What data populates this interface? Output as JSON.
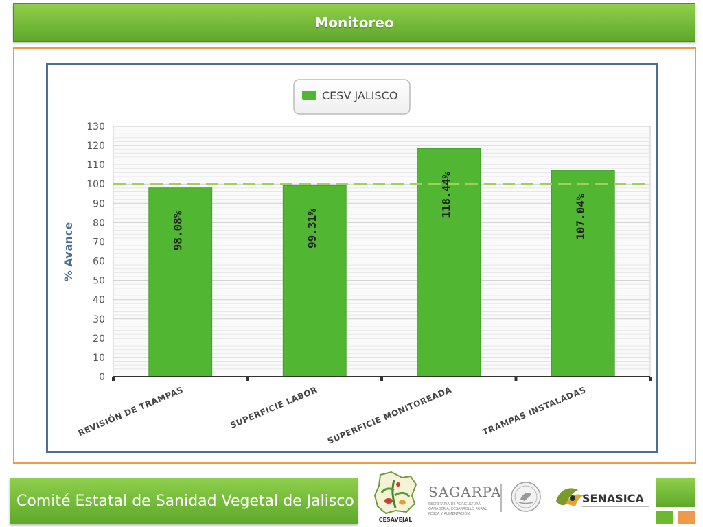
{
  "header": {
    "title": "Monitoreo"
  },
  "footer": {
    "text": "Comité Estatal de Sanidad Vegetal de Jalisco"
  },
  "logos": {
    "cesavejal": {
      "label": "CESAVEJAL"
    },
    "sagarpa": {
      "label": "SAGARPA",
      "subtitle_lines": [
        "SECRETARÍA DE AGRICULTURA,",
        "GANADERÍA, DESARROLLO RURAL,",
        "PESCA Y ALIMENTACIÓN"
      ]
    },
    "senasica": {
      "label": "SENASICA"
    }
  },
  "colors": {
    "accent_green": "#6ab931",
    "bar_green": "#51b631",
    "frame_orange": "#ee9a4a",
    "frame_blue": "#4a6d9c",
    "axis_label_blue": "#4a6d9c",
    "reference_line": "#9dd157"
  },
  "chart_data": {
    "type": "bar",
    "title": "",
    "ylabel": "% Avance",
    "xlabel": "",
    "ylim": [
      0,
      130
    ],
    "y_ticks": [
      0,
      10,
      20,
      30,
      40,
      50,
      60,
      70,
      80,
      90,
      100,
      110,
      120,
      130
    ],
    "grid": true,
    "legend": "top-center",
    "reference_line": 100,
    "categories": [
      "REVISIÓN DE TRAMPAS",
      "SUPERFICIE LABOR",
      "SUPERFICIE MONITOREADA",
      "TRAMPAS INSTALADAS"
    ],
    "series": [
      {
        "name": "CESV JALISCO",
        "values": [
          98.08,
          99.31,
          118.44,
          107.04
        ],
        "labels": [
          "98.08%",
          "99.31%",
          "118.44%",
          "107.04%"
        ]
      }
    ]
  }
}
